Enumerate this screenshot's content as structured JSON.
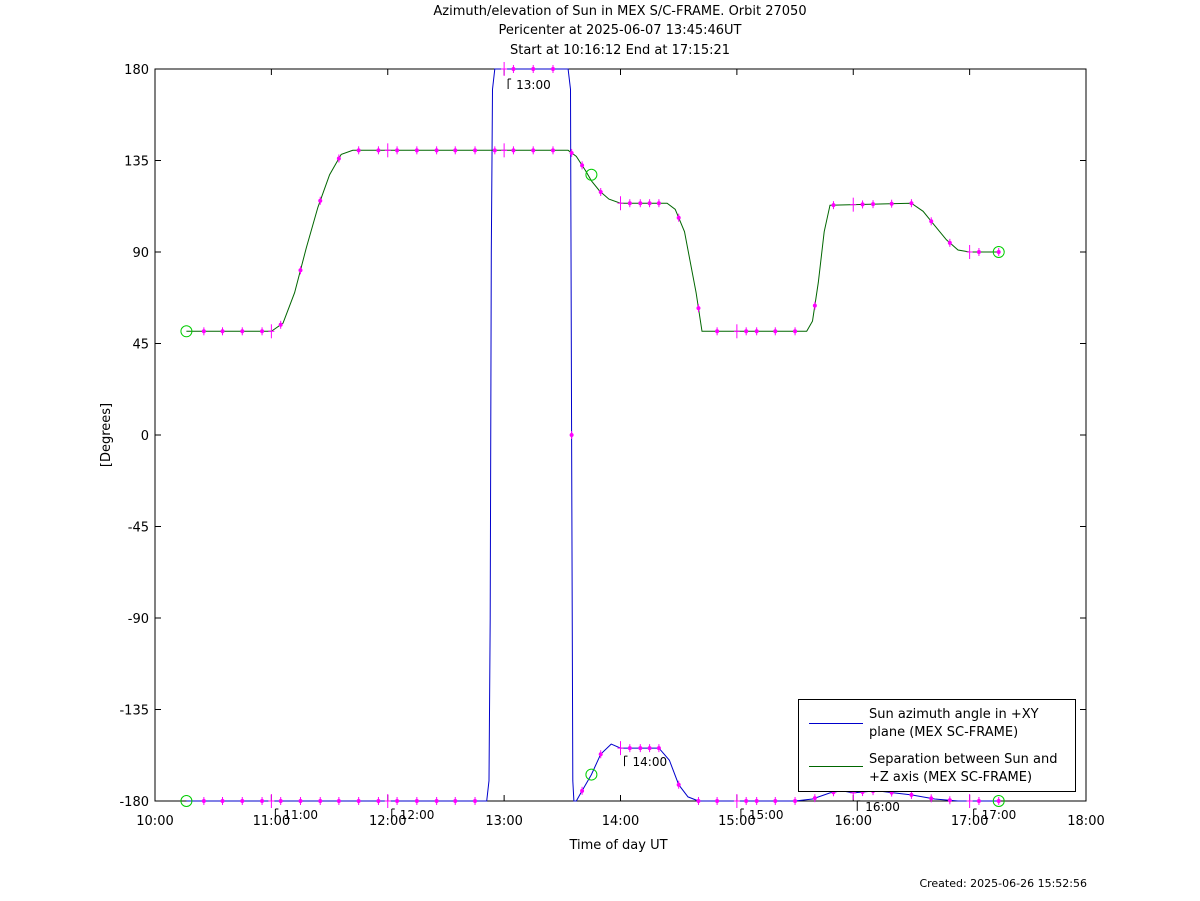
{
  "header": {
    "title_line1": "Azimuth/elevation of Sun in MEX S/C-FRAME.  Orbit 27050",
    "title_line2": "Pericenter at 2025-06-07 13:45:46UT",
    "title_line3": "Start at 10:16:12 End at 17:15:21"
  },
  "footer": {
    "created": "Created: 2025-06-26 15:52:56"
  },
  "colors": {
    "azimuth": "#0000cc",
    "separation": "#006600",
    "marker": "#ff00ff",
    "circle": "#00cc00"
  },
  "chart_data": {
    "type": "line",
    "title": "Azimuth/elevation of Sun in MEX S/C-FRAME.  Orbit 27050",
    "xlabel": "Time of day UT",
    "ylabel": "[Degrees]",
    "xlim": [
      10.0,
      18.0
    ],
    "ylim": [
      -180,
      180
    ],
    "xticks": [
      "10:00",
      "11:00",
      "12:00",
      "13:00",
      "14:00",
      "15:00",
      "16:00",
      "17:00",
      "18:00"
    ],
    "yticks": [
      "180",
      "135",
      "90",
      "45",
      "0",
      "-45",
      "-90",
      "-135",
      "-180"
    ],
    "ytick_values": [
      180,
      135,
      90,
      45,
      0,
      -45,
      -90,
      -135,
      -180
    ],
    "grid": false,
    "legend_position": "bottom-right",
    "series": [
      {
        "name": "Sun azimuth angle in +XY plane (MEX SC-FRAME)",
        "color": "#0000cc",
        "x": [
          10.27,
          12.85,
          12.87,
          12.88,
          12.89,
          12.9,
          12.92,
          13.0,
          13.55,
          13.57,
          13.58,
          13.59,
          13.6,
          13.62,
          13.67,
          13.75,
          13.83,
          13.92,
          14.0,
          14.08,
          14.17,
          14.25,
          14.33,
          14.42,
          14.5,
          14.58,
          14.67,
          14.75,
          15.0,
          15.25,
          15.5,
          15.65,
          15.8,
          15.9,
          16.0,
          16.2,
          16.35,
          16.5,
          16.7,
          16.9,
          17.0,
          17.1,
          17.25
        ],
        "y": [
          -180,
          -180,
          -170,
          -90,
          90,
          170,
          180,
          180,
          180,
          170,
          0,
          -170,
          -180,
          -180,
          -175,
          -167,
          -157,
          -152,
          -154,
          -154,
          -154,
          -154,
          -154,
          -160,
          -172,
          -178,
          -180,
          -180,
          -180,
          -180,
          -180,
          -179,
          -176,
          -175,
          -176,
          -175,
          -176,
          -177,
          -179,
          -180,
          -180,
          -180,
          -180
        ]
      },
      {
        "name": "Separation between Sun and +Z axis (MEX SC-FRAME)",
        "color": "#006600",
        "x": [
          10.27,
          10.9,
          11.0,
          11.1,
          11.2,
          11.3,
          11.4,
          11.5,
          11.6,
          11.7,
          13.55,
          13.62,
          13.7,
          13.75,
          13.82,
          13.9,
          14.0,
          14.4,
          14.47,
          14.55,
          14.65,
          14.7,
          15.6,
          15.65,
          15.7,
          15.75,
          15.8,
          16.5,
          16.6,
          16.7,
          16.8,
          16.9,
          17.0,
          17.25
        ],
        "y": [
          51,
          51,
          51,
          55,
          70,
          92,
          112,
          128,
          138,
          140,
          140,
          137,
          130,
          125,
          120,
          116,
          114,
          114,
          111,
          100,
          70,
          51,
          51,
          56,
          75,
          100,
          113,
          114,
          110,
          103,
          96,
          91,
          90,
          90
        ]
      }
    ],
    "markers_minute": [
      10.25,
      10.42,
      10.58,
      10.75,
      10.92,
      11.08,
      11.25,
      11.42,
      11.58,
      11.75,
      11.92,
      12.08,
      12.25,
      12.42,
      12.58,
      12.75,
      12.92,
      13.08,
      13.25,
      13.42,
      13.58,
      13.67,
      13.83,
      14.08,
      14.17,
      14.25,
      14.33,
      14.5,
      14.67,
      14.83,
      15.08,
      15.17,
      15.33,
      15.5,
      15.67,
      15.83,
      16.08,
      16.17,
      16.33,
      16.5,
      16.67,
      16.83,
      17.08,
      17.25
    ],
    "markers_hour": [
      11.0,
      12.0,
      13.0,
      14.0,
      15.0,
      16.0,
      17.0
    ],
    "circles": [
      {
        "x": 10.27,
        "y": 51
      },
      {
        "x": 10.27,
        "y": -180
      },
      {
        "x": 13.75,
        "y": 128
      },
      {
        "x": 13.75,
        "y": -167
      },
      {
        "x": 17.25,
        "y": 90
      },
      {
        "x": 17.25,
        "y": -180
      }
    ],
    "annotations": [
      {
        "x": 13.0,
        "y": 180,
        "text": "13:00"
      },
      {
        "x": 14.0,
        "y": -154,
        "text": "14:00"
      },
      {
        "x": 11.0,
        "y": -180,
        "text": "11:00"
      },
      {
        "x": 12.0,
        "y": -180,
        "text": "12:00"
      },
      {
        "x": 15.0,
        "y": -180,
        "text": "15:00"
      },
      {
        "x": 16.0,
        "y": -176,
        "text": "16:00"
      },
      {
        "x": 17.0,
        "y": -180,
        "text": "17:00"
      }
    ]
  },
  "legend": {
    "azimuth_line1": "Sun azimuth angle in +XY",
    "azimuth_line2": "plane (MEX SC-FRAME)",
    "separation_line1": "Separation between Sun and",
    "separation_line2": "+Z axis (MEX SC-FRAME)"
  }
}
